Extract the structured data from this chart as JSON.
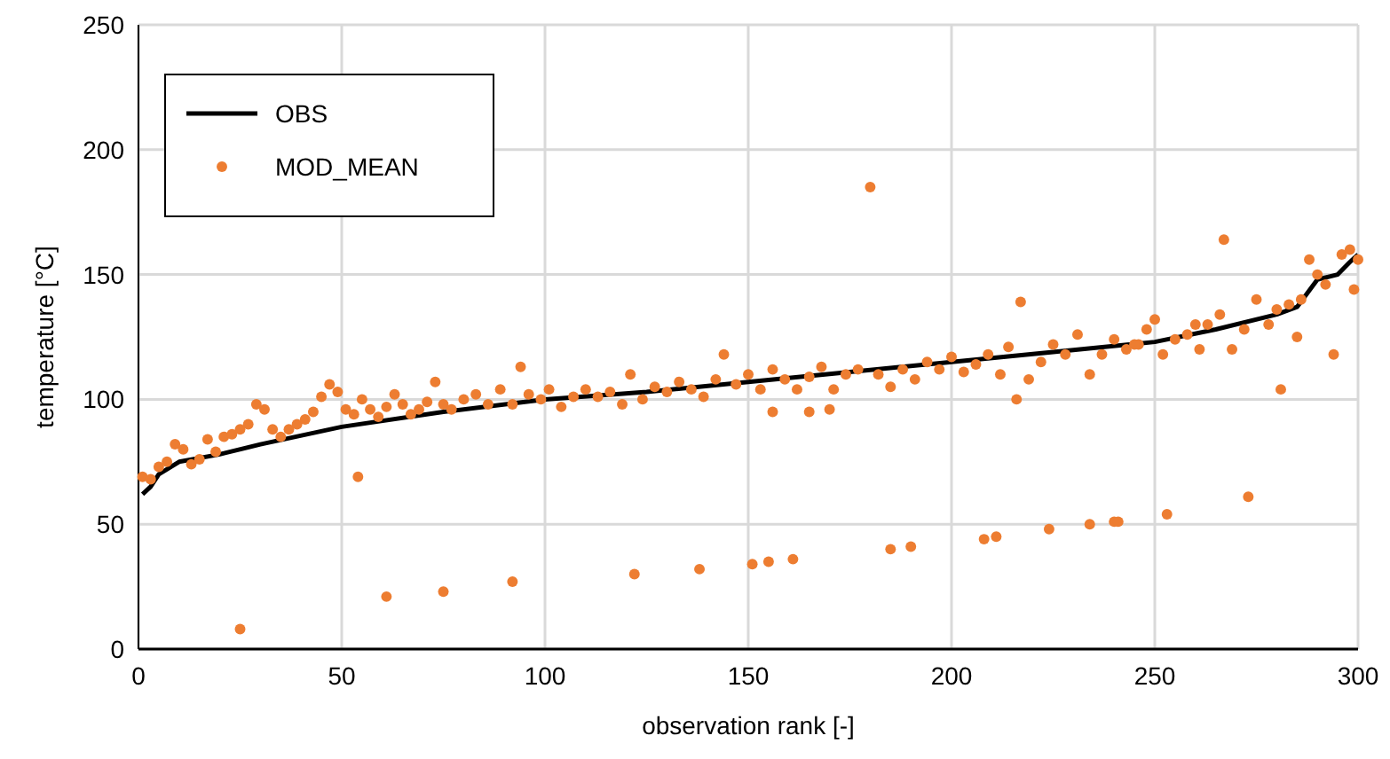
{
  "chart_data": {
    "type": "scatter",
    "xlabel": "observation rank [-]",
    "ylabel": "temperature [°C]",
    "xlim": [
      0,
      300
    ],
    "xticks": [
      0,
      50,
      100,
      150,
      200,
      250,
      300
    ],
    "ylim": [
      0,
      250
    ],
    "yticks": [
      0,
      50,
      100,
      150,
      200,
      250
    ],
    "grid": true,
    "legend": "top left",
    "series": [
      {
        "name": "OBS",
        "type": "line",
        "color": "#000000",
        "marker": "none",
        "x": [
          1,
          3,
          5,
          10,
          20,
          30,
          50,
          75,
          100,
          125,
          150,
          175,
          200,
          225,
          250,
          265,
          280,
          285,
          290,
          295,
          298,
          300
        ],
        "values": [
          62,
          65,
          70,
          75,
          78,
          82,
          89,
          95,
          100,
          103,
          107,
          111,
          115,
          119,
          123,
          128,
          134,
          137,
          148,
          150,
          155,
          158
        ]
      },
      {
        "name": "MOD_MEAN",
        "color": "#ed7d31",
        "marker": "circle",
        "x": [
          1,
          3,
          5,
          7,
          9,
          11,
          13,
          15,
          17,
          19,
          21,
          23,
          25,
          27,
          29,
          31,
          33,
          35,
          37,
          39,
          41,
          43,
          45,
          47,
          49,
          51,
          53,
          55,
          57,
          59,
          61,
          63,
          65,
          67,
          69,
          71,
          73,
          75,
          77,
          80,
          83,
          86,
          89,
          92,
          94,
          96,
          99,
          101,
          104,
          107,
          110,
          113,
          116,
          119,
          121,
          124,
          127,
          130,
          133,
          136,
          139,
          142,
          144,
          147,
          150,
          153,
          156,
          159,
          162,
          165,
          168,
          171,
          174,
          177,
          182,
          185,
          188,
          191,
          194,
          197,
          200,
          203,
          206,
          209,
          212,
          214,
          217,
          219,
          222,
          225,
          228,
          231,
          234,
          237,
          240,
          243,
          246,
          248,
          250,
          252,
          255,
          258,
          261,
          263,
          266,
          269,
          272,
          275,
          278,
          280,
          283,
          286,
          288,
          290,
          292,
          294,
          296,
          298,
          300,
          299,
          285,
          260,
          245,
          25,
          54,
          61,
          75,
          92,
          122,
          138,
          151,
          155,
          161,
          180,
          185,
          190,
          208,
          211,
          224,
          234,
          240,
          241,
          253,
          267,
          273,
          281,
          216,
          170,
          165,
          156
        ],
        "values": [
          69,
          68,
          73,
          75,
          82,
          80,
          74,
          76,
          84,
          79,
          85,
          86,
          88,
          90,
          98,
          96,
          88,
          85,
          88,
          90,
          92,
          95,
          101,
          106,
          103,
          96,
          94,
          100,
          96,
          93,
          97,
          102,
          98,
          94,
          96,
          99,
          107,
          98,
          96,
          100,
          102,
          98,
          104,
          98,
          113,
          102,
          100,
          104,
          97,
          101,
          104,
          101,
          103,
          98,
          110,
          100,
          105,
          103,
          107,
          104,
          101,
          108,
          118,
          106,
          110,
          104,
          112,
          108,
          104,
          109,
          113,
          104,
          110,
          112,
          110,
          105,
          112,
          108,
          115,
          112,
          117,
          111,
          114,
          118,
          110,
          121,
          139,
          108,
          115,
          122,
          118,
          126,
          110,
          118,
          124,
          120,
          122,
          128,
          132,
          118,
          124,
          126,
          120,
          130,
          134,
          120,
          128,
          140,
          130,
          136,
          138,
          140,
          156,
          150,
          146,
          118,
          158,
          160,
          156,
          144,
          125,
          130,
          122,
          8,
          69,
          21,
          23,
          27,
          30,
          32,
          34,
          35,
          36,
          185,
          40,
          41,
          44,
          45,
          48,
          50,
          51,
          51,
          54,
          164,
          61,
          104,
          100,
          96,
          95,
          95
        ]
      }
    ]
  }
}
